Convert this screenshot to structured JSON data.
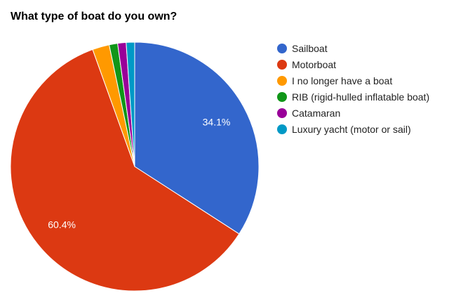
{
  "chart_data": {
    "type": "pie",
    "title": "What type of boat do you own?",
    "slices": [
      {
        "label": "Sailboat",
        "value": 34.1,
        "color": "#3366cc",
        "data_label": "34.1%"
      },
      {
        "label": "Motorboat",
        "value": 60.4,
        "color": "#dc3912",
        "data_label": "60.4%"
      },
      {
        "label": "I no longer have a boat",
        "value": 2.2,
        "color": "#ff9900",
        "data_label": ""
      },
      {
        "label": "RIB (rigid-hulled inflatable boat)",
        "value": 1.1,
        "color": "#109618",
        "data_label": ""
      },
      {
        "label": "Catamaran",
        "value": 1.1,
        "color": "#990099",
        "data_label": ""
      },
      {
        "label": "Luxury yacht (motor or sail)",
        "value": 1.1,
        "color": "#0099c6",
        "data_label": ""
      }
    ],
    "legend_position": "right"
  }
}
